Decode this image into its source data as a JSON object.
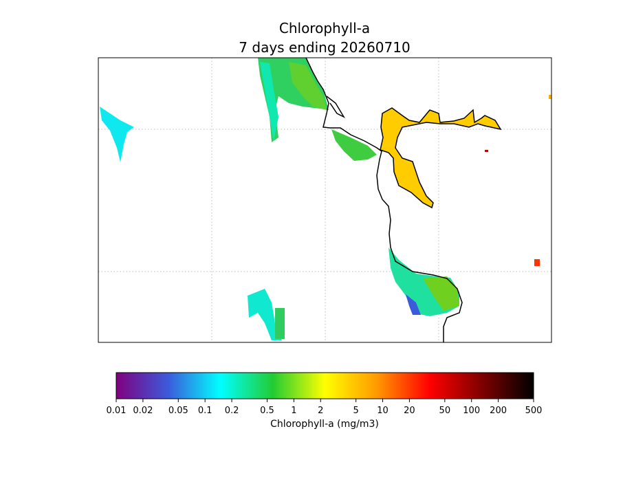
{
  "title": [
    "Chlorophyll-a",
    "7 days ending 20260710"
  ],
  "colorbar": {
    "label": "Chlorophyll-a (mg/m3)",
    "scale": "log",
    "lim": [
      0.01,
      500
    ],
    "ticks": [
      0.01,
      0.02,
      0.05,
      0.1,
      0.2,
      0.5,
      1,
      2,
      5,
      10,
      20,
      50,
      100,
      200,
      500
    ],
    "colors": [
      "#800080",
      "#3b5bdb",
      "#00ffff",
      "#22cc33",
      "#ffff00",
      "#ff9900",
      "#ff0000",
      "#800000",
      "#000000"
    ]
  }
}
